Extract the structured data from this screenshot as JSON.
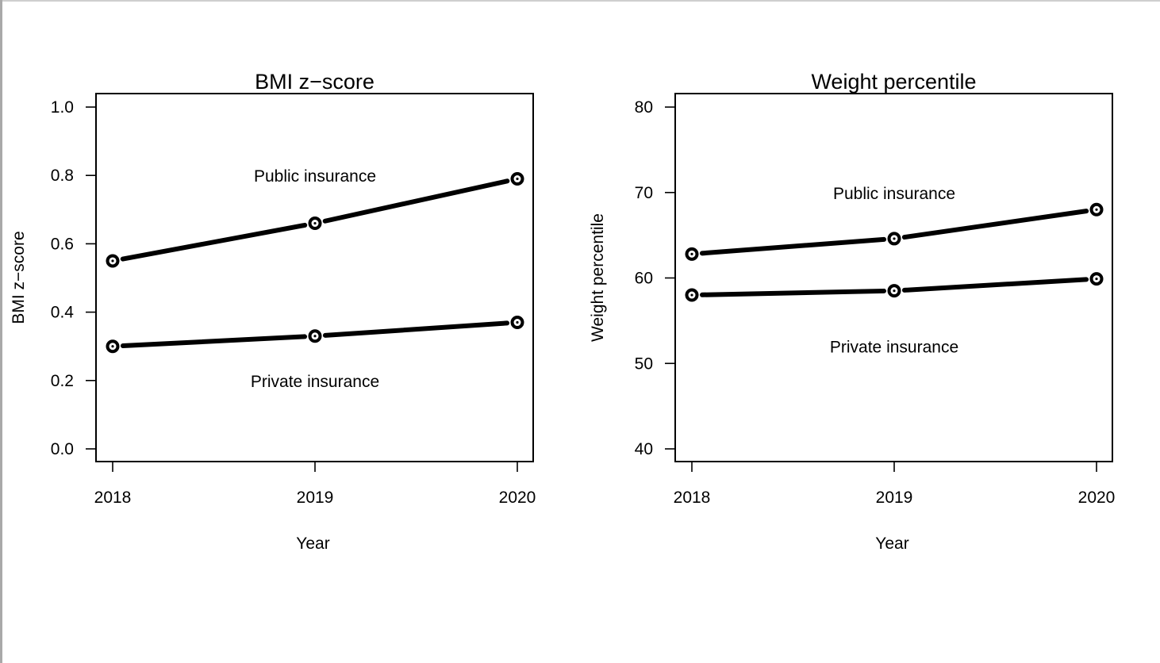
{
  "chart_data": [
    {
      "type": "line",
      "title": "BMI z−score",
      "xlabel": "Year",
      "ylabel": "BMI z−score",
      "x": [
        2018,
        2019,
        2020
      ],
      "x_ticks": [
        "2018",
        "2019",
        "2020"
      ],
      "ylim": [
        0.0,
        1.0
      ],
      "y_ticks": [
        "0.0",
        "0.2",
        "0.4",
        "0.6",
        "0.8",
        "1.0"
      ],
      "grid": false,
      "series": [
        {
          "name": "Public insurance",
          "values": [
            0.55,
            0.66,
            0.79
          ],
          "label_pos": [
            2019,
            0.8
          ]
        },
        {
          "name": "Private insurance",
          "values": [
            0.3,
            0.33,
            0.37
          ],
          "label_pos": [
            2019,
            0.2
          ]
        }
      ]
    },
    {
      "type": "line",
      "title": "Weight percentile",
      "xlabel": "Year",
      "ylabel": "Weight percentile",
      "x": [
        2018,
        2019,
        2020
      ],
      "x_ticks": [
        "2018",
        "2019",
        "2020"
      ],
      "ylim": [
        40,
        80
      ],
      "y_ticks": [
        "40",
        "50",
        "60",
        "70",
        "80"
      ],
      "grid": false,
      "series": [
        {
          "name": "Public insurance",
          "values": [
            62.8,
            64.6,
            68.0
          ],
          "label_pos": [
            2019,
            70
          ]
        },
        {
          "name": "Private insurance",
          "values": [
            58.0,
            58.5,
            59.9
          ],
          "label_pos": [
            2019,
            52
          ]
        }
      ]
    }
  ]
}
